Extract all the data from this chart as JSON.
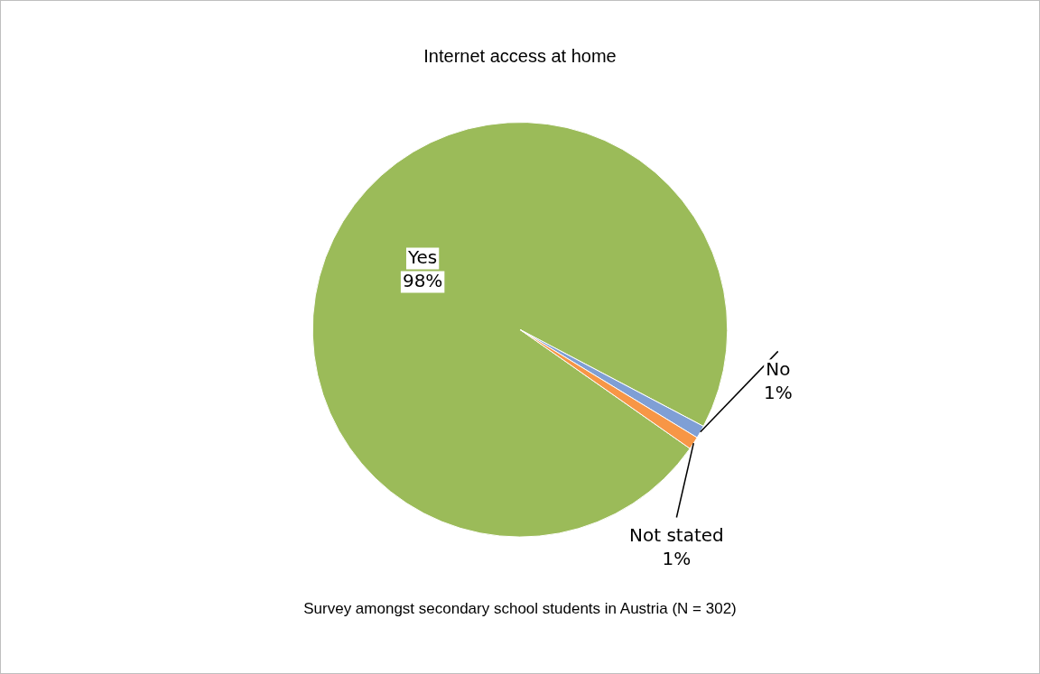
{
  "chart_data": {
    "type": "pie",
    "title": "Internet access at home",
    "categories": [
      "Yes",
      "No",
      "Not stated"
    ],
    "values": [
      98,
      1,
      1
    ],
    "colors": [
      "#9bbb59",
      "#7f9fd5",
      "#f79646"
    ],
    "value_labels": [
      "98%",
      "1%",
      "1%"
    ],
    "legend": false,
    "annotations": [
      "Survey amongst secondary school students in Austria (N = 302)"
    ]
  }
}
